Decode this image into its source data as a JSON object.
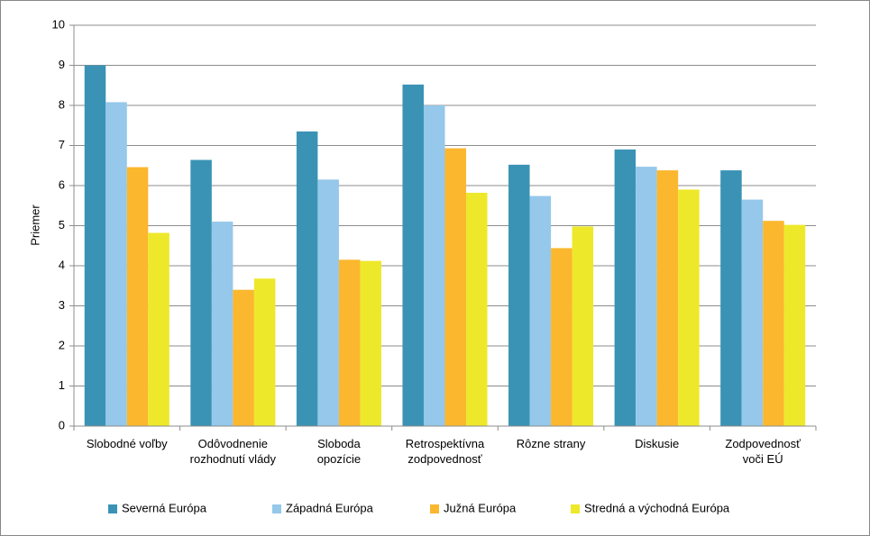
{
  "chart_data": {
    "type": "bar",
    "y_axis_label": "Priemer",
    "categories": [
      "Slobodné voľby",
      "Odôvodnenie rozhodnutí vlády",
      "Sloboda opozície",
      "Retrospektívna zodpovednosť",
      "Rôzne strany",
      "Diskusie",
      "Zodpovednosť voči EÚ"
    ],
    "series": [
      {
        "name": "Severná Európa",
        "color": "#3a93b5",
        "values": [
          9.0,
          6.64,
          7.35,
          8.52,
          6.52,
          6.9,
          6.38
        ]
      },
      {
        "name": "Západná Európa",
        "color": "#95c8ea",
        "values": [
          8.08,
          5.1,
          6.15,
          8.0,
          5.74,
          6.47,
          5.65
        ]
      },
      {
        "name": "Južná Európa",
        "color": "#fbb72e",
        "values": [
          6.46,
          3.4,
          4.15,
          6.93,
          4.44,
          6.38,
          5.12
        ]
      },
      {
        "name": "Stredná a východná Európa",
        "color": "#eee82a",
        "values": [
          4.82,
          3.68,
          4.12,
          5.82,
          4.98,
          5.9,
          5.02
        ]
      }
    ],
    "ylim": [
      0,
      10
    ],
    "yticks": [
      0,
      1,
      2,
      3,
      4,
      5,
      6,
      7,
      8,
      9,
      10
    ],
    "grid": true,
    "legend": "bottom"
  }
}
